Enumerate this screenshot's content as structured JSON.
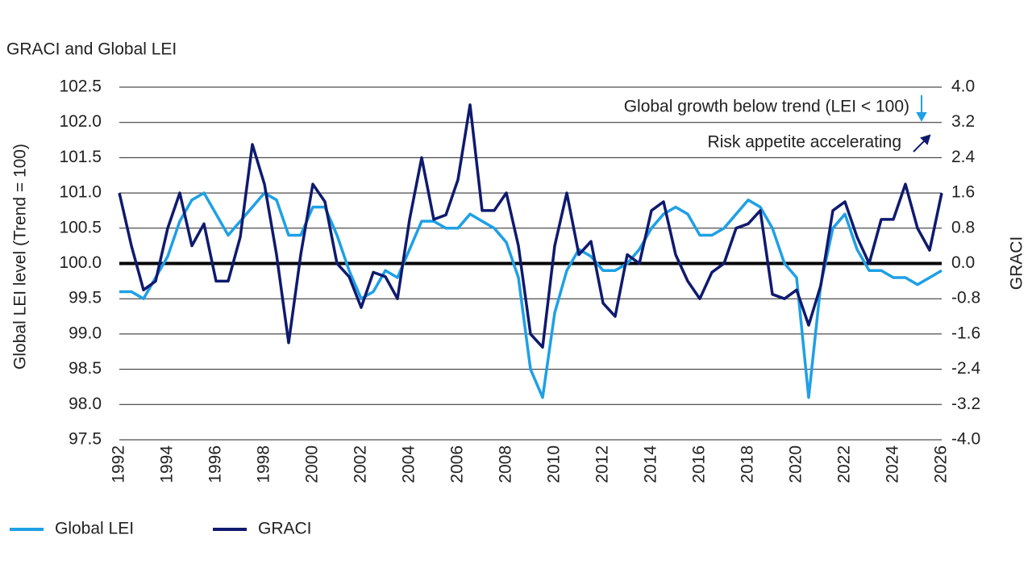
{
  "chart_data": {
    "type": "line",
    "title": "GRACI and Global LEI",
    "y_label": "Global LEI level  (Trend = 100)",
    "y2_label": "GRACI",
    "annotations": [
      "Global growth below trend (LEI < 100)",
      "Risk appetite accelerating"
    ],
    "x": [
      1992.0,
      1992.5,
      1993.0,
      1993.5,
      1994.0,
      1994.5,
      1995.0,
      1995.5,
      1996.0,
      1996.5,
      1997.0,
      1997.5,
      1998.0,
      1998.5,
      1999.0,
      1999.5,
      2000.0,
      2000.5,
      2001.0,
      2001.5,
      2002.0,
      2002.5,
      2003.0,
      2003.5,
      2004.0,
      2004.5,
      2005.0,
      2005.5,
      2006.0,
      2006.5,
      2007.0,
      2007.5,
      2008.0,
      2008.5,
      2009.0,
      2009.5,
      2010.0,
      2010.5,
      2011.0,
      2011.5,
      2012.0,
      2012.5,
      2013.0,
      2013.5,
      2014.0,
      2014.5,
      2015.0,
      2015.5,
      2016.0,
      2016.5,
      2017.0,
      2017.5,
      2018.0,
      2018.5,
      2019.0,
      2019.5,
      2020.0,
      2020.5,
      2021.0,
      2021.5,
      2022.0,
      2022.5,
      2023.0,
      2023.5,
      2024.0,
      2024.5,
      2025.0,
      2025.5,
      2026.0
    ],
    "series": [
      {
        "name": "Global LEI",
        "color": "#1ea0e6",
        "axis": "y",
        "values": [
          99.6,
          99.6,
          99.5,
          99.8,
          100.1,
          100.6,
          100.9,
          101.0,
          100.7,
          100.4,
          100.6,
          100.8,
          101.0,
          100.9,
          100.4,
          100.4,
          100.8,
          100.8,
          100.4,
          99.9,
          99.5,
          99.6,
          99.9,
          99.8,
          100.2,
          100.6,
          100.6,
          100.5,
          100.5,
          100.7,
          100.6,
          100.5,
          100.3,
          99.8,
          98.5,
          98.1,
          99.3,
          99.9,
          100.2,
          100.1,
          99.9,
          99.9,
          100.0,
          100.2,
          100.5,
          100.7,
          100.8,
          100.7,
          100.4,
          100.4,
          100.5,
          100.7,
          100.9,
          100.8,
          100.5,
          100.0,
          99.8,
          98.1,
          99.7,
          100.5,
          100.7,
          100.2,
          99.9,
          99.9,
          99.8,
          99.8,
          99.7,
          99.8,
          99.9
        ]
      },
      {
        "name": "GRACI",
        "color": "#0f1a6e",
        "axis": "y2",
        "values": [
          1.6,
          0.4,
          -0.6,
          -0.4,
          0.8,
          1.6,
          0.4,
          0.9,
          -0.4,
          -0.4,
          0.6,
          2.7,
          1.8,
          0.2,
          -1.8,
          0.2,
          1.8,
          1.4,
          0.0,
          -0.3,
          -1.0,
          -0.2,
          -0.3,
          -0.8,
          1.0,
          2.4,
          1.0,
          1.1,
          1.9,
          3.6,
          1.2,
          1.2,
          1.6,
          0.4,
          -1.6,
          -1.9,
          0.4,
          1.6,
          0.2,
          0.5,
          -0.9,
          -1.2,
          0.2,
          0.0,
          1.2,
          1.4,
          0.2,
          -0.4,
          -0.8,
          -0.2,
          0.0,
          0.8,
          0.9,
          1.2,
          -0.7,
          -0.8,
          -0.6,
          -1.4,
          -0.5,
          1.2,
          1.4,
          0.6,
          0.0,
          1.0,
          1.0,
          1.8,
          0.8,
          0.3,
          1.6
        ]
      }
    ],
    "xlim": [
      1992,
      2026
    ],
    "xticks": [
      1992,
      1994,
      1996,
      1998,
      2000,
      2002,
      2004,
      2006,
      2008,
      2010,
      2012,
      2014,
      2016,
      2018,
      2020,
      2022,
      2024,
      2026
    ],
    "ylim": [
      97.5,
      102.5
    ],
    "yticks": [
      97.5,
      {
        "value": 98,
        "label": "98.0"
      },
      98.5,
      {
        "value": 99,
        "label": "99.0"
      },
      99.5,
      {
        "value": 100,
        "label": "100.0"
      },
      100.5,
      {
        "value": 101,
        "label": "101.0"
      },
      101.5,
      {
        "value": 102,
        "label": "102.0"
      },
      102.5
    ],
    "y2lim": [
      -4,
      4
    ],
    "y2ticks": [
      {
        "value": -4,
        "label": "-4.0"
      },
      {
        "value": -3.2,
        "label": "-3.2"
      },
      {
        "value": -2.4,
        "label": "-2.4"
      },
      {
        "value": -1.6,
        "label": "-1.6"
      },
      {
        "value": -0.8,
        "label": "-0.8"
      },
      {
        "value": 0,
        "label": "0.0"
      },
      {
        "value": 0.8,
        "label": "0.8"
      },
      {
        "value": 1.6,
        "label": "1.6"
      },
      {
        "value": 2.4,
        "label": "2.4"
      },
      {
        "value": 3.2,
        "label": "3.2"
      },
      {
        "value": 4,
        "label": "4.0"
      }
    ],
    "reference_line": 100,
    "grid": true,
    "legend": "bottom"
  }
}
